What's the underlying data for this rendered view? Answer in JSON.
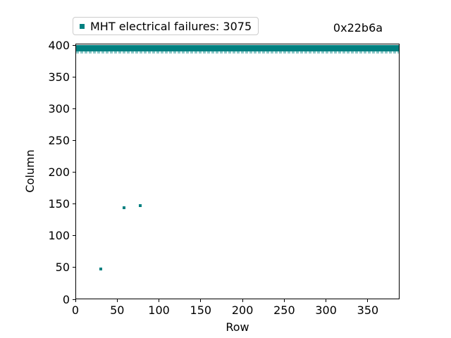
{
  "figure": {
    "annotation": "0x22b6a",
    "xlabel": "Row",
    "ylabel": "Column",
    "background": "#ffffff",
    "legend": {
      "label": "MHT electrical failures: 3075",
      "marker": "square",
      "marker_color": "#008080",
      "position": "upper-left-above-axes"
    }
  },
  "chart_data": {
    "type": "scatter",
    "title": "0x22b6a",
    "xlabel": "Row",
    "ylabel": "Column",
    "xlim": [
      0,
      388
    ],
    "ylim": [
      0,
      403
    ],
    "x_ticks": [
      0,
      50,
      100,
      150,
      200,
      250,
      300,
      350
    ],
    "y_ticks": [
      0,
      50,
      100,
      150,
      200,
      250,
      300,
      350,
      400
    ],
    "grid": false,
    "legend_position": "upper-left-above-axes",
    "series": [
      {
        "name": "MHT electrical failures: 3075",
        "marker": "square",
        "color": "#008080",
        "band_edge_color": "#8ec8c8",
        "failure_count": 3075,
        "scatter_points": [
          [
            30,
            48
          ],
          [
            58,
            144
          ],
          [
            78,
            148
          ]
        ],
        "dense_band": {
          "description": "fully failed columns spanning all rows",
          "col_start": 392,
          "col_end": 399,
          "row_start": 0,
          "row_end": 388
        }
      }
    ]
  }
}
